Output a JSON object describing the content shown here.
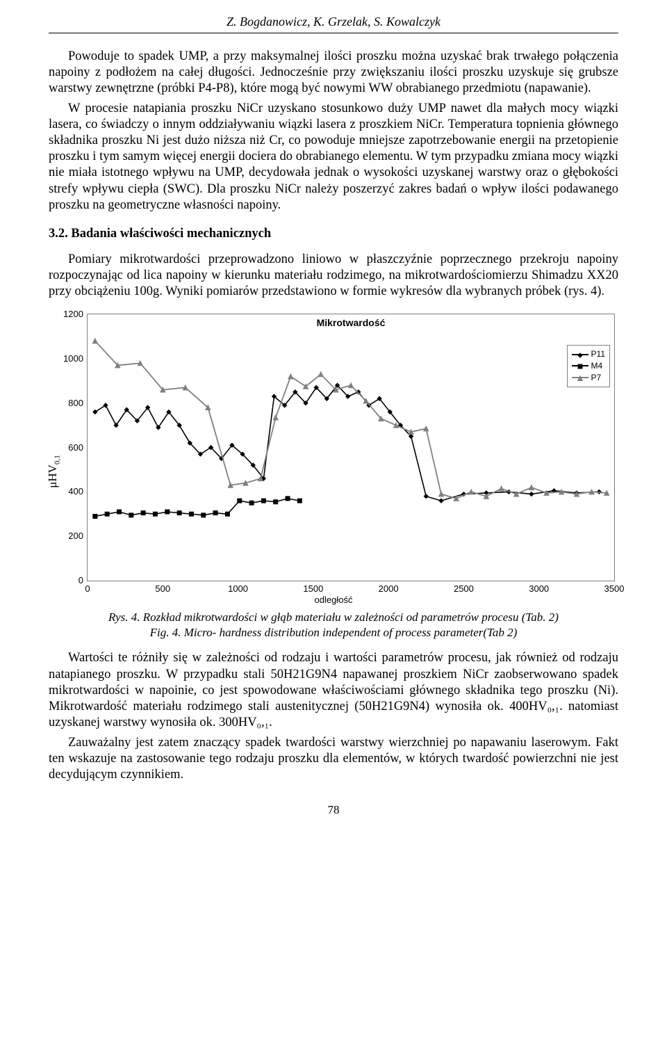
{
  "header": {
    "authors": "Z. Bogdanowicz, K. Grzelak, S. Kowalczyk"
  },
  "body": {
    "p1": "Powoduje to spadek UMP, a przy maksymalnej ilości proszku można uzyskać brak trwałego połączenia napoiny z podłożem na całej długości. Jednocześnie przy zwiększaniu ilości proszku uzyskuje się grubsze warstwy zewnętrzne (próbki P4-P8), które mogą być nowymi WW obrabianego przedmiotu (napawanie).",
    "p2": "W procesie natapiania proszku NiCr uzyskano stosunkowo duży UMP nawet dla małych mocy wiązki lasera, co świadczy o innym oddziaływaniu wiązki lasera z proszkiem NiCr. Temperatura topnienia głównego składnika proszku Ni jest dużo niższa niż Cr, co powoduje mniejsze zapotrzebowanie energii na przetopienie proszku i tym samym więcej energii dociera do obrabianego elementu. W tym przypadku zmiana mocy wiązki nie miała istotnego wpływu na UMP, decydowała jednak o wysokości uzyskanej warstwy oraz o głębokości strefy wpływu ciepła (SWC). Dla proszku NiCr należy poszerzyć zakres badań o wpływ ilości podawanego proszku na geometryczne własności napoiny.",
    "section32": "3.2. Badania właściwości mechanicznych",
    "p3": "Pomiary mikrotwardości przeprowadzono liniowo w płaszczyźnie poprzecznego przekroju napoiny rozpoczynając od lica napoiny w kierunku materiału rodzimego, na mikrotwardościomierzu Shimadzu XX20 przy obciążeniu 100g. Wyniki pomiarów przedstawiono w formie wykresów dla wybranych próbek (rys. 4).",
    "cap1": "Rys. 4. Rozkład mikrotwardości w głąb materiału w zależności od parametrów procesu (Tab. 2)",
    "cap2": "Fig. 4. Micro- hardness distribution independent of process parameter(Tab 2)",
    "p4": "Wartości te różniły się w zależności od rodzaju i wartości parametrów procesu, jak również od rodzaju natapianego proszku. W przypadku stali 50H21G9N4 napawanej proszkiem NiCr zaobserwowano spadek mikrotwardości w napoinie, co jest spowodowane właściwościami głównego składnika tego proszku (Ni). Mikrotwardość materiału rodzimego stali austenitycznej (50H21G9N4) wynosiła ok. 400HV₀,₁. natomiast uzyskanej warstwy wynosiła ok. 300HV₀,₁.",
    "p5": "Zauważalny jest zatem znaczący spadek twardości warstwy wierzchniej po napawaniu laserowym. Fakt ten wskazuje na zastosowanie tego rodzaju proszku dla elementów, w których twardość powierzchni nie jest decydującym czynnikiem.",
    "page_num": "78"
  },
  "chart": {
    "type": "line",
    "title": "Mikrotwardość",
    "xlabel": "odległość",
    "ylabel": "μHV",
    "ylabel_sub": "0,1",
    "xlim": [
      0,
      3500
    ],
    "ylim": [
      0,
      1200
    ],
    "xticks": [
      0,
      500,
      1000,
      1500,
      2000,
      2500,
      3000,
      3500
    ],
    "yticks": [
      0,
      200,
      400,
      600,
      800,
      1000,
      1200
    ],
    "background_color": "#ffffff",
    "border_color": "#808080",
    "tick_font_size": 13,
    "title_font_size": 14,
    "legend": {
      "position": "upper-right",
      "border_color": "#808080"
    },
    "series": [
      {
        "name": "P11",
        "color": "#000000",
        "line_width": 1.6,
        "marker": "diamond",
        "marker_size": 6,
        "x": [
          50,
          120,
          190,
          260,
          330,
          400,
          470,
          540,
          610,
          680,
          750,
          820,
          890,
          960,
          1030,
          1100,
          1170,
          1240,
          1310,
          1380,
          1450,
          1520,
          1590,
          1660,
          1730,
          1800,
          1870,
          1940,
          2010,
          2080,
          2150,
          2250,
          2350,
          2500,
          2650,
          2800,
          2950,
          3100,
          3250,
          3400
        ],
        "y": [
          760,
          790,
          700,
          770,
          720,
          780,
          690,
          760,
          700,
          620,
          570,
          600,
          550,
          610,
          570,
          520,
          460,
          830,
          790,
          850,
          800,
          870,
          820,
          880,
          830,
          850,
          790,
          820,
          760,
          700,
          650,
          380,
          360,
          390,
          395,
          400,
          390,
          405,
          395,
          400
        ]
      },
      {
        "name": "M4",
        "color": "#000000",
        "line_width": 1.6,
        "marker": "square",
        "marker_size": 6,
        "x": [
          50,
          130,
          210,
          290,
          370,
          450,
          530,
          610,
          690,
          770,
          850,
          930,
          1010,
          1090,
          1170,
          1250,
          1330,
          1410
        ],
        "y": [
          290,
          300,
          310,
          295,
          305,
          300,
          310,
          305,
          300,
          295,
          305,
          300,
          360,
          350,
          360,
          355,
          370,
          360
        ]
      },
      {
        "name": "P7",
        "color": "#808080",
        "line_width": 1.8,
        "marker": "triangle",
        "marker_size": 7,
        "x": [
          50,
          200,
          350,
          500,
          650,
          800,
          950,
          1050,
          1150,
          1250,
          1350,
          1450,
          1550,
          1650,
          1750,
          1850,
          1950,
          2050,
          2150,
          2250,
          2350,
          2450,
          2550,
          2650,
          2750,
          2850,
          2950,
          3050,
          3150,
          3250,
          3350,
          3450
        ],
        "y": [
          1080,
          970,
          980,
          860,
          870,
          780,
          430,
          440,
          460,
          735,
          920,
          875,
          930,
          860,
          880,
          810,
          730,
          700,
          670,
          685,
          390,
          370,
          400,
          380,
          415,
          390,
          420,
          395,
          400,
          390,
          400,
          395
        ]
      }
    ]
  }
}
